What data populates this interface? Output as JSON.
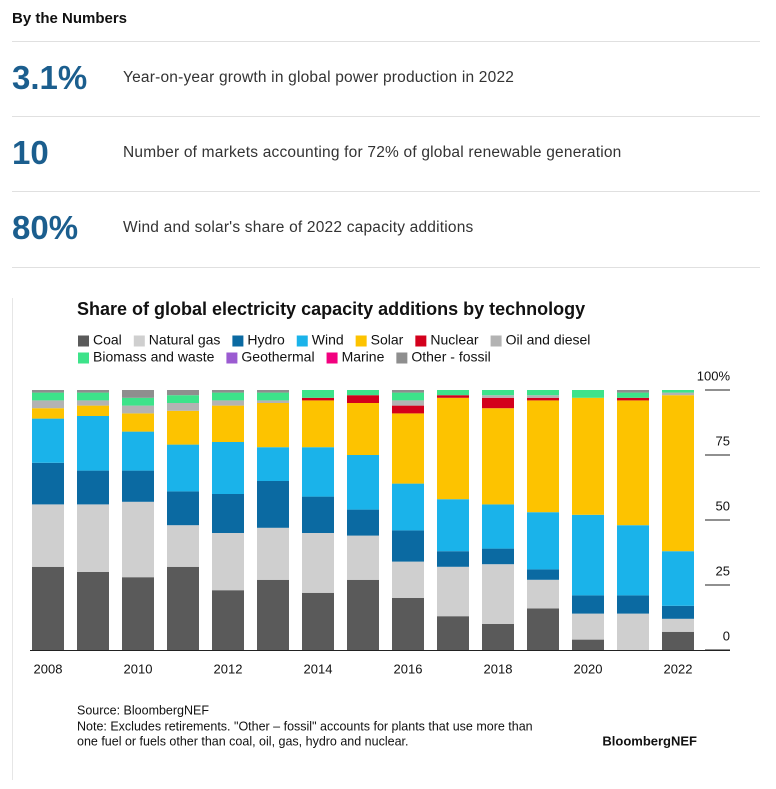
{
  "header": "By the Numbers",
  "stats": [
    {
      "value": "3.1%",
      "text": "Year-on-year growth in global power production in 2022"
    },
    {
      "value": "10",
      "text": "Number of markets accounting for 72% of global renewable generation"
    },
    {
      "value": "80%",
      "text": "Wind and solar's share of 2022 capacity additions"
    }
  ],
  "chart_data": {
    "type": "stacked_bar",
    "title": "Share of global electricity capacity additions by technology",
    "categories": [
      "2008",
      null,
      "2010",
      null,
      "2012",
      null,
      "2014",
      null,
      "2016",
      null,
      "2018",
      null,
      "2020",
      null,
      "2022"
    ],
    "series": [
      {
        "name": "Coal",
        "color": "#5a5a5a",
        "values": [
          32,
          30,
          28,
          32,
          23,
          27,
          22,
          27,
          20,
          13,
          10,
          16,
          4,
          0,
          7
        ]
      },
      {
        "name": "Natural gas",
        "color": "#cfcfcf",
        "values": [
          24,
          26,
          29,
          16,
          22,
          20,
          23,
          17,
          14,
          19,
          23,
          11,
          10,
          14,
          5
        ]
      },
      {
        "name": "Hydro",
        "color": "#0b6aa2",
        "values": [
          16,
          13,
          12,
          13,
          15,
          18,
          14,
          10,
          12,
          6,
          6,
          4,
          7,
          7,
          5
        ]
      },
      {
        "name": "Wind",
        "color": "#1ab3ea",
        "values": [
          17,
          21,
          15,
          18,
          20,
          13,
          19,
          21,
          18,
          20,
          17,
          22,
          31,
          27,
          21
        ]
      },
      {
        "name": "Solar",
        "color": "#fdc300",
        "values": [
          4,
          4,
          7,
          13,
          14,
          17,
          18,
          20,
          27,
          39,
          37,
          43,
          45,
          48,
          60
        ]
      },
      {
        "name": "Nuclear",
        "color": "#d3001c",
        "values": [
          0,
          0,
          0,
          0,
          0,
          0,
          1,
          3,
          3,
          1,
          4,
          1,
          0,
          1,
          0
        ]
      },
      {
        "name": "Oil and diesel",
        "color": "#b3b3b3",
        "values": [
          3,
          2,
          3,
          3,
          2,
          1,
          0,
          0,
          2,
          0,
          1,
          1,
          0,
          0,
          1
        ]
      },
      {
        "name": "Biomass and waste",
        "color": "#3de38a",
        "values": [
          3,
          3,
          3,
          3,
          3,
          3,
          3,
          2,
          3,
          2,
          2,
          2,
          3,
          2,
          1
        ]
      },
      {
        "name": "Geothermal",
        "color": "#9b5bd1",
        "values": [
          0,
          0,
          0,
          0,
          0,
          0,
          0,
          0,
          0,
          0,
          0,
          0,
          0,
          0,
          0
        ]
      },
      {
        "name": "Marine",
        "color": "#f2007f",
        "values": [
          0,
          0,
          0,
          0,
          0,
          0,
          0,
          0,
          0,
          0,
          0,
          0,
          0,
          0,
          0
        ]
      },
      {
        "name": "Other - fossil",
        "color": "#8e8e8e",
        "values": [
          1,
          1,
          3,
          2,
          1,
          1,
          0,
          0,
          1,
          0,
          0,
          0,
          0,
          1,
          0
        ]
      }
    ],
    "ylim": [
      0,
      100
    ],
    "yticks": [
      0,
      25,
      50,
      75,
      {
        "value": 100,
        "label": "100%"
      }
    ],
    "source": "Source: BloombergNEF",
    "note_lines": [
      "Note: Excludes retirements. \"Other – fossil\" accounts for plants that use more than",
      "one fuel or fuels other than coal, oil, gas, hydro and nuclear."
    ],
    "logo": "BloombergNEF"
  }
}
